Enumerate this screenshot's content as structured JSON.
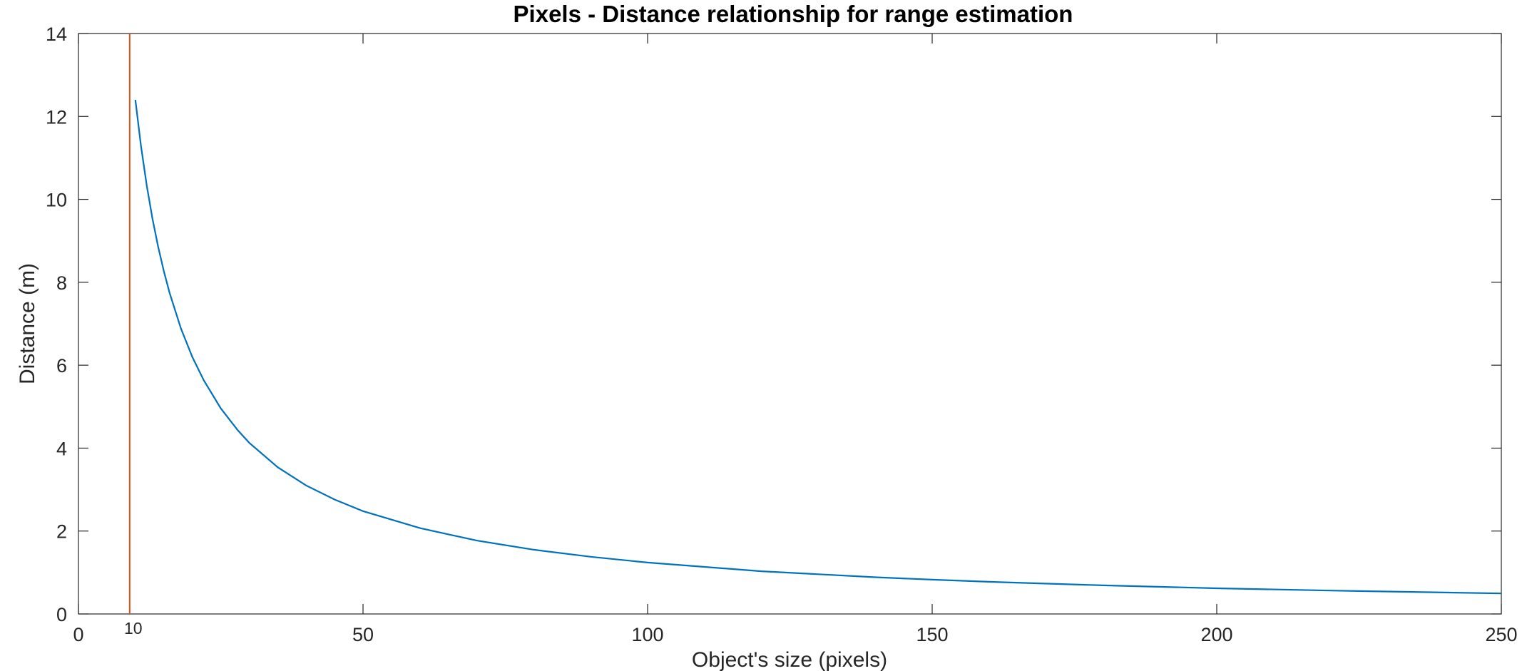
{
  "chart_data": {
    "type": "line",
    "title": "Pixels - Distance relationship for range estimation",
    "xlabel": "Object's size (pixels)",
    "ylabel": "Distance (m)",
    "xlim": [
      0,
      250
    ],
    "ylim": [
      0,
      14
    ],
    "xticks": [
      0,
      50,
      100,
      150,
      200,
      250
    ],
    "yticks": [
      0,
      2,
      4,
      6,
      8,
      10,
      12,
      14
    ],
    "grid": false,
    "series": [
      {
        "color": "#0072BD",
        "x": [
          10,
          11,
          12,
          13,
          14,
          15,
          16,
          18,
          20,
          22,
          25,
          28,
          30,
          35,
          40,
          45,
          50,
          60,
          70,
          80,
          90,
          100,
          120,
          140,
          150,
          160,
          180,
          200,
          220,
          240,
          250
        ],
        "y": [
          12.4,
          11.27,
          10.33,
          9.54,
          8.86,
          8.27,
          7.75,
          6.89,
          6.2,
          5.64,
          4.96,
          4.43,
          4.13,
          3.54,
          3.1,
          2.76,
          2.48,
          2.07,
          1.77,
          1.55,
          1.38,
          1.24,
          1.03,
          0.886,
          0.827,
          0.775,
          0.689,
          0.62,
          0.564,
          0.517,
          0.496
        ]
      }
    ],
    "annotations": [
      {
        "type": "vertical-line",
        "x": 9,
        "color": "#D95319",
        "label": "10"
      }
    ]
  }
}
